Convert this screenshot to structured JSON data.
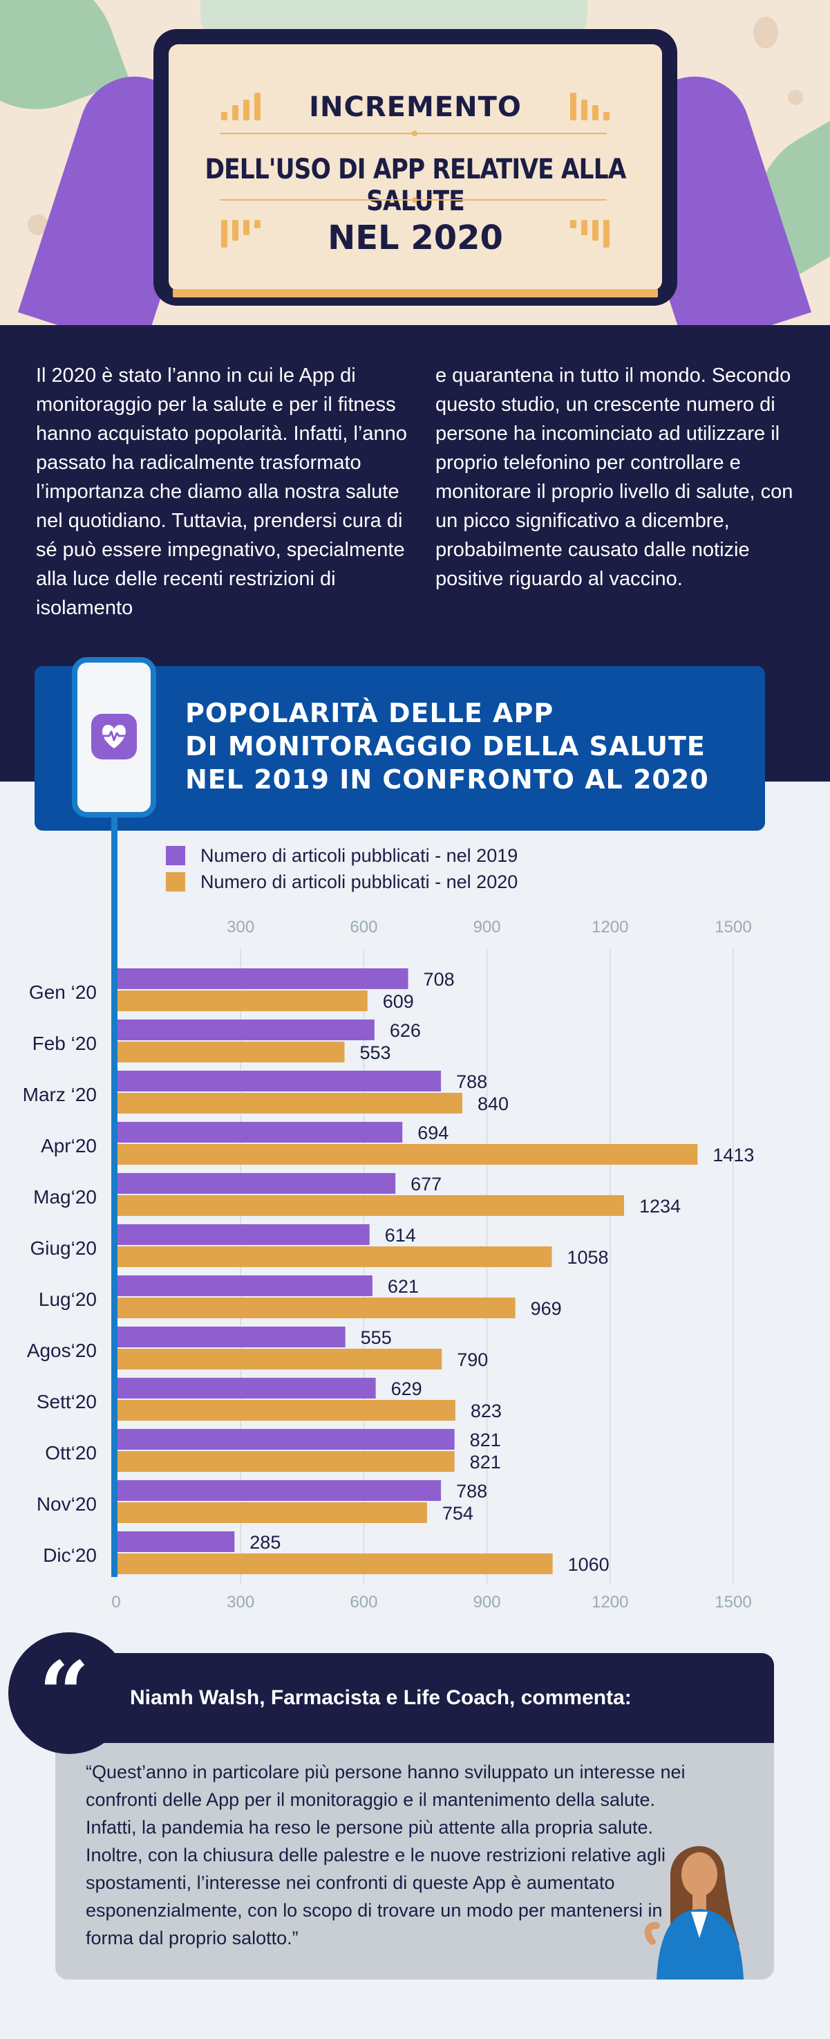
{
  "hero": {
    "line1": "INCREMENTO",
    "line2": "DELL'USO DI APP RELATIVE ALLA SALUTE",
    "line3": "NEL 2020"
  },
  "intro": {
    "col1": "Il 2020 è stato l’anno in cui le App di monitoraggio per la salute e per il fitness hanno acquistato popolarità. Infatti, l’anno passato ha radicalmente trasformato l’importanza che diamo alla nostra salute nel quotidiano. Tuttavia, prendersi cura di sé può essere impegnativo, specialmente alla luce delle recenti restrizioni di isolamento",
    "col2": "e quarantena in tutto il mondo. Secondo questo studio, un crescente numero di persone ha incominciato ad utilizzare il proprio telefonino per controllare e monitorare il proprio livello di salute, con un picco significativo a dicembre, probabilmente causato dalle notizie positive riguardo al vaccino."
  },
  "chart_header": {
    "line1": "POPOLARITÀ DELLE APP",
    "line2": "DI MONITORAGGIO DELLA SALUTE",
    "line3": "NEL 2019 IN CONFRONTO AL 2020"
  },
  "icons": {
    "phone": "phone-icon",
    "app": "heart-pulse-icon",
    "quote": "quote-icon"
  },
  "colors": {
    "navy": "#1c1d45",
    "blue": "#0a4fa2",
    "purple": "#8f5fd0",
    "orange": "#e1a44b"
  },
  "chart_data": {
    "type": "bar",
    "orientation": "horizontal",
    "categories": [
      "Gen ‘20",
      "Feb ‘20",
      "Marz ‘20",
      "Apr‘20",
      "Mag‘20",
      "Giug‘20",
      "Lug‘20",
      "Agos‘20",
      "Sett‘20",
      "Ott‘20",
      "Nov‘20",
      "Dic‘20"
    ],
    "series": [
      {
        "name": "Numero di articoli pubblicati - nel 2019",
        "color": "#8f5fd0",
        "values": [
          708,
          626,
          788,
          694,
          677,
          614,
          621,
          555,
          629,
          821,
          788,
          285
        ]
      },
      {
        "name": "Numero di articoli pubblicati - nel 2020",
        "color": "#e1a44b",
        "values": [
          609,
          553,
          840,
          1413,
          1234,
          1058,
          969,
          790,
          823,
          821,
          754,
          1060
        ]
      }
    ],
    "xticks_top": [
      "300",
      "600",
      "900",
      "1200",
      "1500"
    ],
    "xticks_bottom": [
      "0",
      "300",
      "600",
      "900",
      "1200",
      "1500"
    ],
    "xlim": [
      0,
      1600
    ],
    "grid": true,
    "legend_position": "top-left"
  },
  "quote": {
    "author": "Niamh Walsh, Farmacista e Life Coach, commenta:",
    "mark": "“",
    "text": "“Quest’anno in particolare più persone hanno sviluppato un interesse nei confronti delle App per il monitoraggio e il mantenimento della salute. Infatti, la pandemia ha reso le persone più attente alla propria salute. Inoltre, con la chiusura delle palestre e le nuove restrizioni relative agli spostamenti, l’interesse nei confronti di queste App è aumentato esponenzialmente, con lo scopo di trovare un modo per mantenersi in forma dal proprio salotto.”"
  }
}
